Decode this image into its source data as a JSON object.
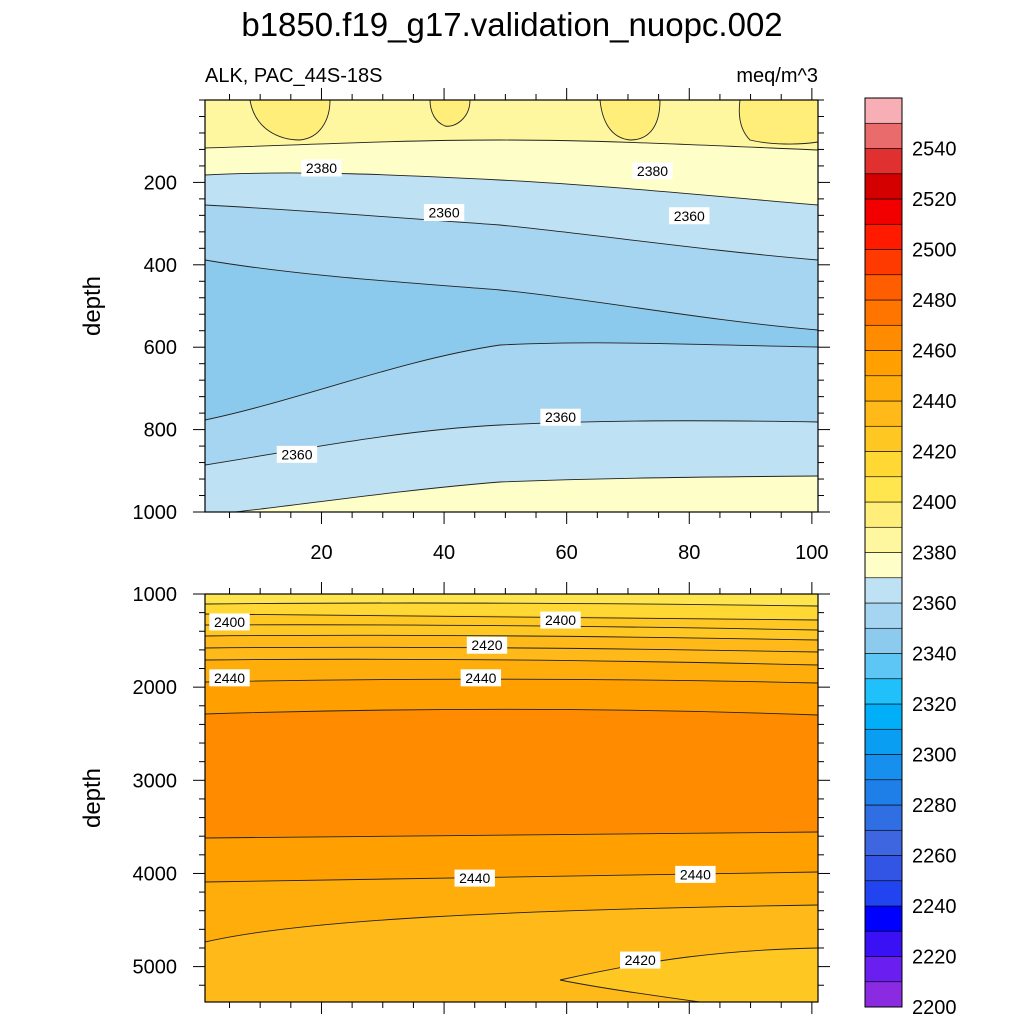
{
  "chart_data": {
    "type": "contour",
    "title": "b1850.f19_g17.validation_nuopc.002",
    "left_string": "ALK, PAC_44S-18S",
    "right_string": "meq/m^3",
    "colorbar": {
      "levels": [
        2200,
        2210,
        2220,
        2230,
        2240,
        2250,
        2260,
        2270,
        2280,
        2290,
        2300,
        2310,
        2320,
        2330,
        2340,
        2350,
        2360,
        2370,
        2380,
        2390,
        2400,
        2410,
        2420,
        2430,
        2440,
        2450,
        2460,
        2470,
        2480,
        2490,
        2500,
        2510,
        2520,
        2530,
        2540,
        2550
      ],
      "labels": [
        "2200",
        "2220",
        "2240",
        "2260",
        "2280",
        "2300",
        "2320",
        "2340",
        "2360",
        "2380",
        "2400",
        "2420",
        "2440",
        "2460",
        "2480",
        "2500",
        "2520",
        "2540"
      ],
      "colors": [
        "#8a2be2",
        "#6a1ef0",
        "#3a10f5",
        "#0000ff",
        "#2244f0",
        "#3355e6",
        "#3d66e0",
        "#2f6fe3",
        "#1f7fe8",
        "#168fef",
        "#0a9ef3",
        "#00aff7",
        "#20c0fa",
        "#5ec6f5",
        "#8dcbee",
        "#a6d5f1",
        "#bee1f3",
        "#fdfec8",
        "#fff6a0",
        "#ffee7a",
        "#ffe54e",
        "#ffd833",
        "#ffc721",
        "#ffb918",
        "#ffad0a",
        "#ff9f00",
        "#ff8c00",
        "#ff7500",
        "#ff5e00",
        "#ff3a00",
        "#ff1a00",
        "#f20000",
        "#d40000",
        "#e03030",
        "#ea6b6b",
        "#f7aeb5"
      ]
    },
    "panels": [
      {
        "ylabel": "depth",
        "y_range": [
          0,
          1000
        ],
        "y_reversed": true,
        "y_ticks": [
          200,
          400,
          600,
          800,
          1000
        ],
        "x_range": [
          1,
          101
        ],
        "x_ticks": [
          20,
          40,
          60,
          80,
          100
        ],
        "contour_labels": [
          {
            "text": "2380",
            "x": 20,
            "y": 165
          },
          {
            "text": "2380",
            "x": 74,
            "y": 172
          },
          {
            "text": "2360",
            "x": 40,
            "y": 273
          },
          {
            "text": "2360",
            "x": 80,
            "y": 281
          },
          {
            "text": "2360",
            "x": 59,
            "y": 770
          },
          {
            "text": "2360",
            "x": 16,
            "y": 860
          }
        ]
      },
      {
        "ylabel": "depth",
        "y_range": [
          1000,
          5380
        ],
        "y_reversed": true,
        "y_ticks": [
          1000,
          2000,
          3000,
          4000,
          5000
        ],
        "x_range": [
          1,
          101
        ],
        "contour_labels": [
          {
            "text": "2400",
            "x": 5,
            "y": 1300
          },
          {
            "text": "2400",
            "x": 59,
            "y": 1280
          },
          {
            "text": "2420",
            "x": 47,
            "y": 1550
          },
          {
            "text": "2440",
            "x": 5,
            "y": 1900
          },
          {
            "text": "2440",
            "x": 46,
            "y": 1900
          },
          {
            "text": "2440",
            "x": 45,
            "y": 4050
          },
          {
            "text": "2440",
            "x": 81,
            "y": 4010
          },
          {
            "text": "2420",
            "x": 72,
            "y": 4930
          }
        ]
      }
    ]
  }
}
